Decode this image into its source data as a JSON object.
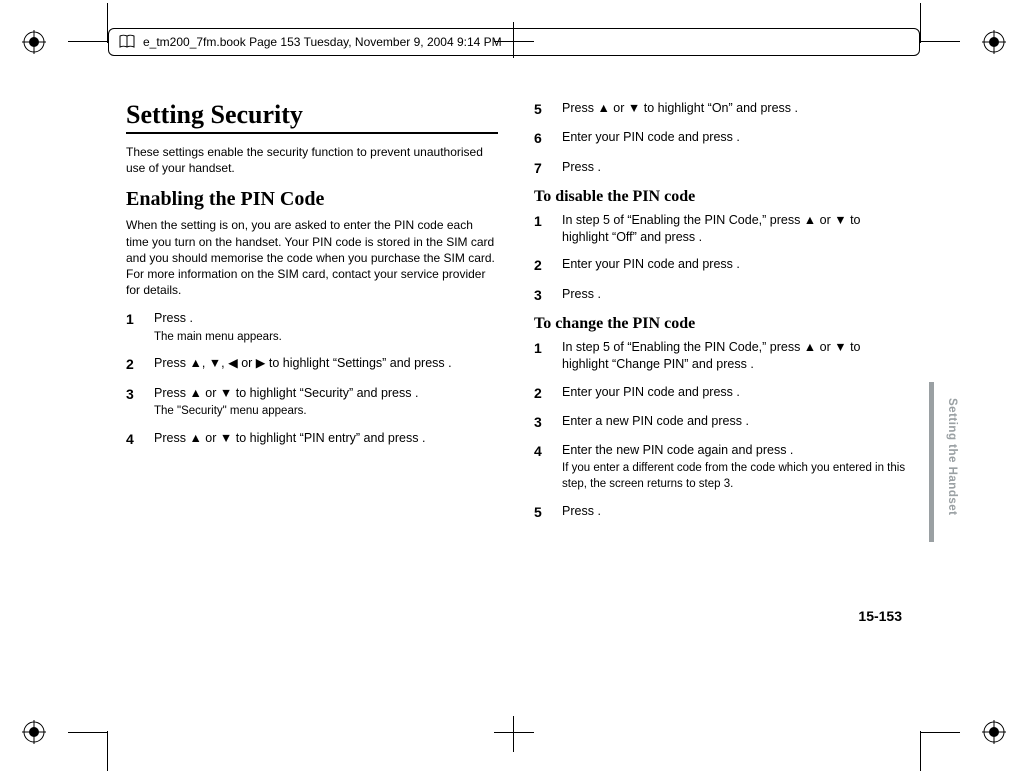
{
  "header": {
    "text": "e_tm200_7fm.book  Page 153  Tuesday, November 9, 2004  9:14 PM"
  },
  "left": {
    "h1": "Setting Security",
    "intro": "These settings enable the security function to prevent unauthorised use of your handset.",
    "h2": "Enabling the PIN Code",
    "desc": "When the setting is on, you are asked to enter the PIN code each time you turn on the handset. Your PIN code is stored in the SIM card and you should memorise the code when you purchase the SIM card. For more information on the SIM card, contact your service provider for details.",
    "steps": [
      {
        "n": "1",
        "t": "Press {O}.",
        "note": "The main menu appears."
      },
      {
        "n": "2",
        "t": "Press {U}, {D}, {L} or {R} to highlight \"Settings\" and press {O}."
      },
      {
        "n": "3",
        "t": "Press {U} or {D} to highlight \"Security\" and press {O}.",
        "note": "The \"Security\" menu appears."
      },
      {
        "n": "4",
        "t": "Press {U} or {D} to highlight \"PIN entry\" and press {O}."
      }
    ]
  },
  "right": {
    "stepsA": [
      {
        "n": "5",
        "t": "Press {U} or {D} to highlight \"On\" and press {O}."
      },
      {
        "n": "6",
        "t": "Enter your PIN code and press {O}."
      },
      {
        "n": "7",
        "t": "Press {O}."
      }
    ],
    "h3a": "To disable the PIN code",
    "stepsB": [
      {
        "n": "1",
        "t": "In step 5 of \"Enabling the PIN Code,\" press {U} or {D} to highlight \"Off\" and press {O}."
      },
      {
        "n": "2",
        "t": "Enter your PIN code and press {O}."
      },
      {
        "n": "3",
        "t": "Press {O}."
      }
    ],
    "h3b": "To change the PIN code",
    "stepsC": [
      {
        "n": "1",
        "t": "In step 5 of \"Enabling the PIN Code,\" press {U} or {D} to highlight \"Change PIN\" and press {O}."
      },
      {
        "n": "2",
        "t": "Enter your PIN code and press {O}."
      },
      {
        "n": "3",
        "t": "Enter a new PIN code and press {O}."
      },
      {
        "n": "4",
        "t": "Enter the new PIN code again and press {O}.",
        "note": "If you enter a different code from the code which you entered in this step, the screen returns to step 3."
      },
      {
        "n": "5",
        "t": "Press {O}."
      }
    ]
  },
  "side_label": "Setting the Handset",
  "page_num": "15-153",
  "colors": {
    "side_gray": "#9aa0a3"
  }
}
